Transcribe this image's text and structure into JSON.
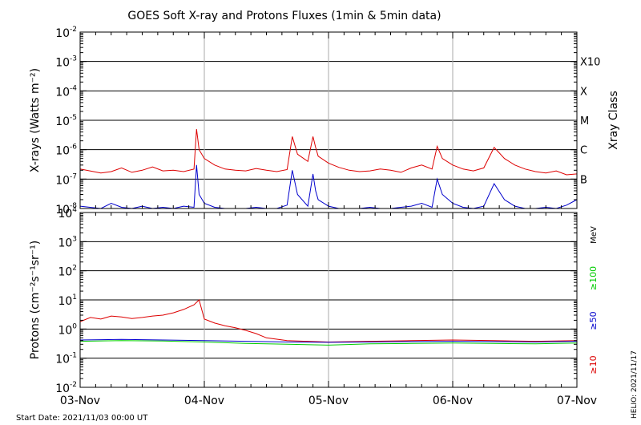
{
  "chart_data": [
    {
      "type": "line",
      "title": "GOES Soft X-ray and Protons Fluxes   (1min & 5min data)",
      "ylabel": "X-rays (Watts m⁻²)",
      "right_label": "Xray Class",
      "y_scale": "log",
      "ylim": [
        1e-08,
        0.01
      ],
      "y_ticks": [
        {
          "base": "10",
          "exp": "-2"
        },
        {
          "base": "10",
          "exp": "-3"
        },
        {
          "base": "10",
          "exp": "-4"
        },
        {
          "base": "10",
          "exp": "-5"
        },
        {
          "base": "10",
          "exp": "-6"
        },
        {
          "base": "10",
          "exp": "-7"
        },
        {
          "base": "10",
          "exp": "-8"
        }
      ],
      "classes": [
        {
          "label": "X10",
          "flux": 0.001
        },
        {
          "label": "X",
          "flux": 0.0001
        },
        {
          "label": "M",
          "flux": 1e-05
        },
        {
          "label": "C",
          "flux": 1e-06
        },
        {
          "label": "B",
          "flux": 1e-07
        }
      ],
      "series": [
        {
          "color": "#dd0000",
          "x_hours": [
            0,
            4,
            6,
            8,
            10,
            12,
            14,
            16,
            18,
            20,
            22,
            22.5,
            23,
            24,
            26,
            28,
            30,
            32,
            34,
            36,
            38,
            40,
            41,
            42,
            44,
            45,
            45.5,
            46,
            48,
            50,
            52,
            54,
            56,
            58,
            60,
            62,
            64,
            66,
            68,
            69,
            70,
            72,
            74,
            76,
            78,
            80,
            82,
            84,
            86,
            88,
            90,
            92,
            94,
            96
          ],
          "y": [
            2.2e-07,
            1.6e-07,
            1.8e-07,
            2.4e-07,
            1.7e-07,
            2e-07,
            2.6e-07,
            1.9e-07,
            2e-07,
            1.8e-07,
            2.2e-07,
            5e-06,
            1e-06,
            5e-07,
            3e-07,
            2.2e-07,
            2e-07,
            1.9e-07,
            2.3e-07,
            2e-07,
            1.8e-07,
            2.1e-07,
            2.8e-06,
            7e-07,
            4e-07,
            2.8e-06,
            1.2e-06,
            6e-07,
            3.5e-07,
            2.5e-07,
            2e-07,
            1.8e-07,
            1.9e-07,
            2.2e-07,
            2e-07,
            1.7e-07,
            2.4e-07,
            3e-07,
            2.2e-07,
            1.3e-06,
            5e-07,
            3e-07,
            2.2e-07,
            1.9e-07,
            2.4e-07,
            1.2e-06,
            5e-07,
            3e-07,
            2.2e-07,
            1.8e-07,
            1.6e-07,
            1.9e-07,
            1.4e-07,
            1.5e-07
          ]
        },
        {
          "color": "#0000cc",
          "x_hours": [
            0,
            4,
            6,
            8,
            10,
            12,
            14,
            16,
            18,
            20,
            22,
            22.5,
            23,
            24,
            26,
            28,
            30,
            32,
            34,
            36,
            38,
            40,
            41,
            42,
            44,
            45,
            45.5,
            46,
            48,
            50,
            52,
            54,
            56,
            58,
            60,
            62,
            64,
            66,
            68,
            69,
            70,
            72,
            74,
            76,
            78,
            80,
            82,
            84,
            86,
            88,
            90,
            92,
            94,
            96
          ],
          "y": [
            1.2e-08,
            1e-08,
            1.5e-08,
            1.1e-08,
            1e-08,
            1.2e-08,
            1e-08,
            1.1e-08,
            1e-08,
            1.2e-08,
            1.1e-08,
            3e-07,
            3e-08,
            1.5e-08,
            1.1e-08,
            1e-08,
            1e-08,
            1e-08,
            1.1e-08,
            1e-08,
            1e-08,
            1.3e-08,
            2e-07,
            3e-08,
            1.2e-08,
            1.5e-07,
            4e-08,
            2e-08,
            1.2e-08,
            1e-08,
            1e-08,
            1e-08,
            1.1e-08,
            1e-08,
            1e-08,
            1.1e-08,
            1.2e-08,
            1.5e-08,
            1.1e-08,
            1e-07,
            3e-08,
            1.5e-08,
            1.1e-08,
            1e-08,
            1.2e-08,
            7e-08,
            2e-08,
            1.2e-08,
            1e-08,
            1e-08,
            1.1e-08,
            1e-08,
            1.3e-08,
            2e-08
          ]
        }
      ]
    },
    {
      "type": "line",
      "ylabel": "Protons (cm⁻²s⁻¹sr⁻¹)",
      "units_label": "MeV",
      "y_scale": "log",
      "ylim": [
        0.01,
        10000
      ],
      "y_ticks": [
        {
          "base": "10",
          "exp": "4"
        },
        {
          "base": "10",
          "exp": "3"
        },
        {
          "base": "10",
          "exp": "2"
        },
        {
          "base": "10",
          "exp": "1"
        },
        {
          "base": "10",
          "exp": "0"
        },
        {
          "base": "10",
          "exp": "-1"
        },
        {
          "base": "10",
          "exp": "-2"
        }
      ],
      "threshold": 10,
      "energy_labels": [
        {
          "label": "≥10",
          "color": "#dd0000"
        },
        {
          "label": "≥50",
          "color": "#0000cc"
        },
        {
          "label": "≥100",
          "color": "#00cc00"
        }
      ],
      "series": [
        {
          "color": "#dd0000",
          "x_hours": [
            0,
            2,
            4,
            6,
            8,
            10,
            12,
            14,
            16,
            18,
            20,
            22,
            23,
            24,
            26,
            28,
            30,
            32,
            34,
            36,
            40,
            48,
            56,
            64,
            72,
            80,
            88,
            96
          ],
          "y": [
            1.8,
            2.5,
            2.2,
            2.8,
            2.6,
            2.3,
            2.5,
            2.8,
            3.0,
            3.6,
            4.7,
            6.8,
            10.0,
            2.2,
            1.6,
            1.3,
            1.1,
            0.9,
            0.7,
            0.5,
            0.4,
            0.36,
            0.38,
            0.4,
            0.42,
            0.4,
            0.38,
            0.4
          ]
        },
        {
          "color": "#0000cc",
          "x_hours": [
            0,
            8,
            16,
            24,
            32,
            40,
            48,
            56,
            64,
            72,
            80,
            88,
            96
          ],
          "y": [
            0.42,
            0.44,
            0.42,
            0.4,
            0.38,
            0.36,
            0.35,
            0.36,
            0.37,
            0.38,
            0.37,
            0.36,
            0.38
          ]
        },
        {
          "color": "#00cc00",
          "x_hours": [
            0,
            8,
            16,
            24,
            32,
            40,
            48,
            56,
            64,
            72,
            80,
            88,
            96
          ],
          "y": [
            0.38,
            0.4,
            0.39,
            0.36,
            0.32,
            0.3,
            0.28,
            0.31,
            0.32,
            0.33,
            0.32,
            0.31,
            0.33
          ]
        }
      ]
    }
  ],
  "x_axis": {
    "range_hours": [
      0,
      96
    ],
    "tick_labels": [
      "03-Nov",
      "04-Nov",
      "05-Nov",
      "06-Nov",
      "07-Nov"
    ]
  },
  "footer": {
    "start_date": "Start Date: 2021/11/03 00:00 UT",
    "side_stamp": "HELIO: 2021/11/17"
  }
}
